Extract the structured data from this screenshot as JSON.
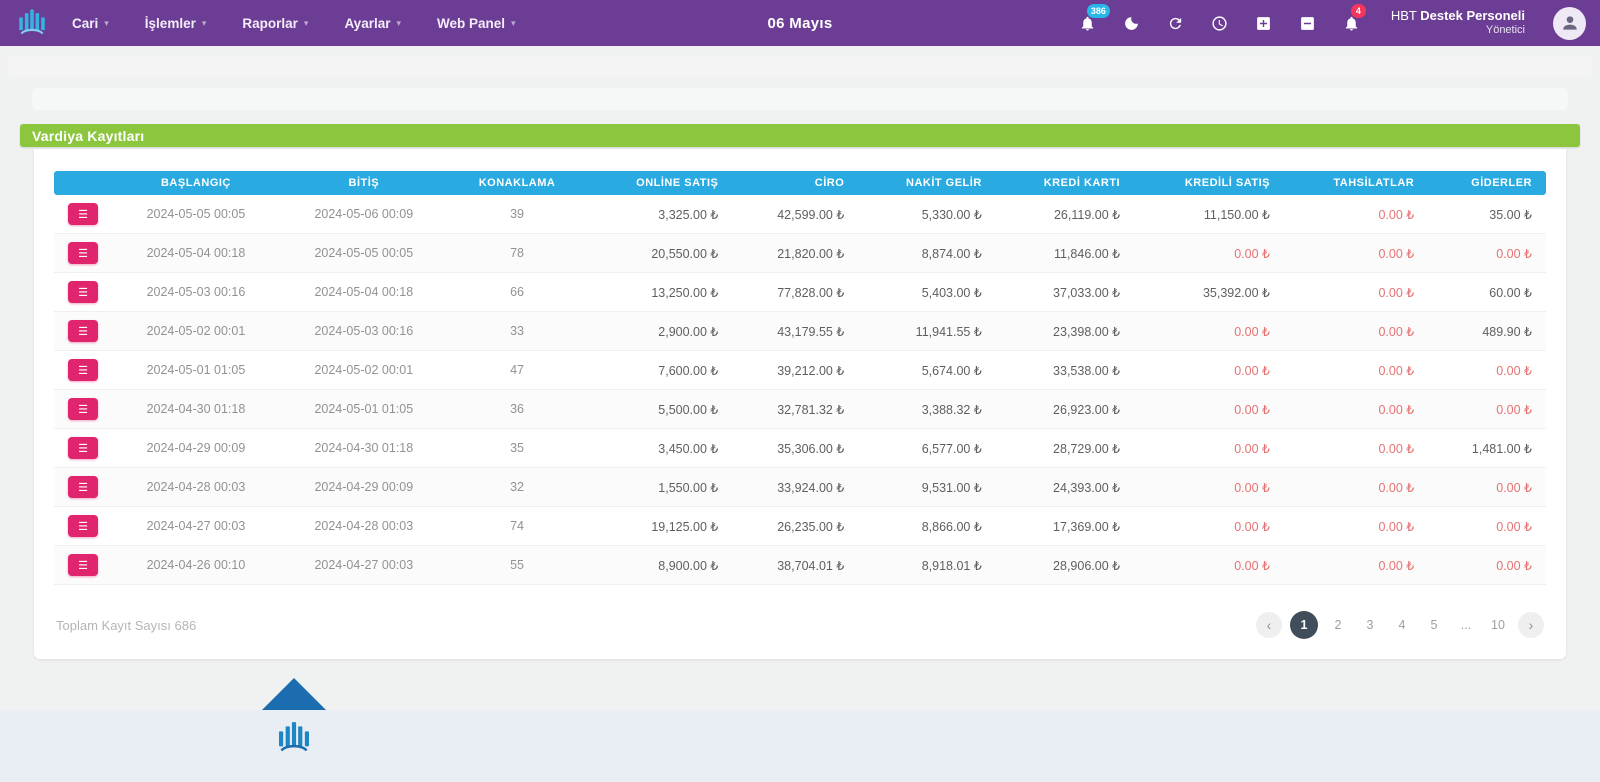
{
  "navbar": {
    "menu": [
      {
        "label": "Cari"
      },
      {
        "label": "İşlemler"
      },
      {
        "label": "Raporlar"
      },
      {
        "label": "Ayarlar"
      },
      {
        "label": "Web Panel"
      }
    ],
    "date": "06 Mayıs",
    "icons": [
      {
        "name": "bell-counter-icon",
        "badge": "386",
        "badge_color": "#29b6e8"
      },
      {
        "name": "moon-icon"
      },
      {
        "name": "refresh-icon"
      },
      {
        "name": "clock-icon"
      },
      {
        "name": "plus-square-icon"
      },
      {
        "name": "minus-square-icon"
      },
      {
        "name": "bell-icon",
        "badge": "4",
        "badge_color": "#f5365c"
      }
    ],
    "user": {
      "prefix": "HBT",
      "name": "Destek Personeli",
      "role": "Yönetici"
    }
  },
  "panel": {
    "title": "Vardiya Kayıtları"
  },
  "table": {
    "columns": [
      "BAŞLANGIÇ",
      "BİTİŞ",
      "KONAKLAMA",
      "ONLİNE SATIŞ",
      "CİRO",
      "NAKİT GELİR",
      "KREDİ KARTI",
      "KREDİLİ SATIŞ",
      "TAHSİLATLAR",
      "GİDERLER"
    ],
    "rows": [
      [
        "2024-05-05 00:05",
        "2024-05-06 00:09",
        "39",
        "3,325.00 ₺",
        "42,599.00 ₺",
        "5,330.00 ₺",
        "26,119.00 ₺",
        "11,150.00 ₺",
        "0.00 ₺",
        "35.00 ₺"
      ],
      [
        "2024-05-04 00:18",
        "2024-05-05 00:05",
        "78",
        "20,550.00 ₺",
        "21,820.00 ₺",
        "8,874.00 ₺",
        "11,846.00 ₺",
        "0.00 ₺",
        "0.00 ₺",
        "0.00 ₺"
      ],
      [
        "2024-05-03 00:16",
        "2024-05-04 00:18",
        "66",
        "13,250.00 ₺",
        "77,828.00 ₺",
        "5,403.00 ₺",
        "37,033.00 ₺",
        "35,392.00 ₺",
        "0.00 ₺",
        "60.00 ₺"
      ],
      [
        "2024-05-02 00:01",
        "2024-05-03 00:16",
        "33",
        "2,900.00 ₺",
        "43,179.55 ₺",
        "11,941.55 ₺",
        "23,398.00 ₺",
        "0.00 ₺",
        "0.00 ₺",
        "489.90 ₺"
      ],
      [
        "2024-05-01 01:05",
        "2024-05-02 00:01",
        "47",
        "7,600.00 ₺",
        "39,212.00 ₺",
        "5,674.00 ₺",
        "33,538.00 ₺",
        "0.00 ₺",
        "0.00 ₺",
        "0.00 ₺"
      ],
      [
        "2024-04-30 01:18",
        "2024-05-01 01:05",
        "36",
        "5,500.00 ₺",
        "32,781.32 ₺",
        "3,388.32 ₺",
        "26,923.00 ₺",
        "0.00 ₺",
        "0.00 ₺",
        "0.00 ₺"
      ],
      [
        "2024-04-29 00:09",
        "2024-04-30 01:18",
        "35",
        "3,450.00 ₺",
        "35,306.00 ₺",
        "6,577.00 ₺",
        "28,729.00 ₺",
        "0.00 ₺",
        "0.00 ₺",
        "1,481.00 ₺"
      ],
      [
        "2024-04-28 00:03",
        "2024-04-29 00:09",
        "32",
        "1,550.00 ₺",
        "33,924.00 ₺",
        "9,531.00 ₺",
        "24,393.00 ₺",
        "0.00 ₺",
        "0.00 ₺",
        "0.00 ₺"
      ],
      [
        "2024-04-27 00:03",
        "2024-04-28 00:03",
        "74",
        "19,125.00 ₺",
        "26,235.00 ₺",
        "8,866.00 ₺",
        "17,369.00 ₺",
        "0.00 ₺",
        "0.00 ₺",
        "0.00 ₺"
      ],
      [
        "2024-04-26 00:10",
        "2024-04-27 00:03",
        "55",
        "8,900.00 ₺",
        "38,704.01 ₺",
        "8,918.01 ₺",
        "28,906.00 ₺",
        "0.00 ₺",
        "0.00 ₺",
        "0.00 ₺"
      ]
    ]
  },
  "footer": {
    "total_label": "Toplam Kayıt Sayısı 686",
    "pages": [
      "1",
      "2",
      "3",
      "4",
      "5",
      "...",
      "10"
    ],
    "active_page": "1",
    "prev": "‹",
    "next": "›"
  }
}
